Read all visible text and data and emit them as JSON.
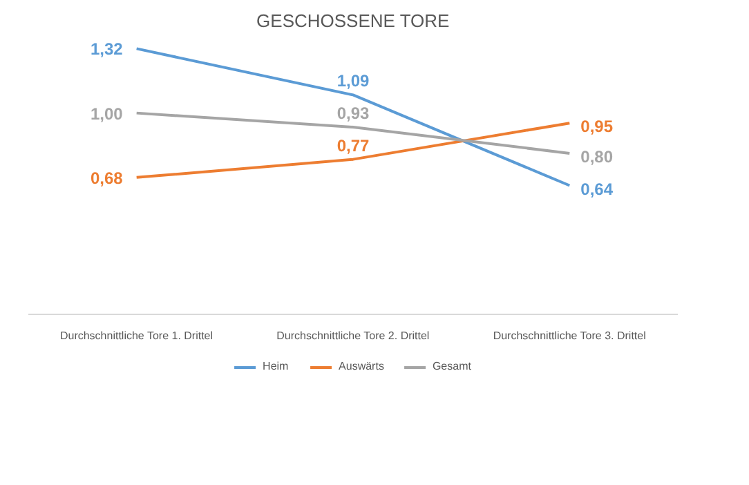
{
  "chart_data": {
    "type": "line",
    "title": "GESCHOSSENE TORE",
    "categories": [
      "Durchschnittliche Tore 1. Drittel",
      "Durchschnittliche Tore 2. Drittel",
      "Durchschnittliche Tore 3. Drittel"
    ],
    "series": [
      {
        "name": "Heim",
        "color": "#5b9bd5",
        "values": [
          1.32,
          1.09,
          0.64
        ],
        "value_labels": [
          "1,32",
          "1,09",
          "0,64"
        ]
      },
      {
        "name": "Auswärts",
        "color": "#ed7d31",
        "values": [
          0.68,
          0.77,
          0.95
        ],
        "value_labels": [
          "0,68",
          "0,77",
          "0,95"
        ]
      },
      {
        "name": "Gesamt",
        "color": "#a5a5a5",
        "values": [
          1.0,
          0.93,
          0.8
        ],
        "value_labels": [
          "1,00",
          "0,93",
          "0,80"
        ]
      }
    ],
    "tick_labels": "x",
    "legend": "bottom"
  }
}
